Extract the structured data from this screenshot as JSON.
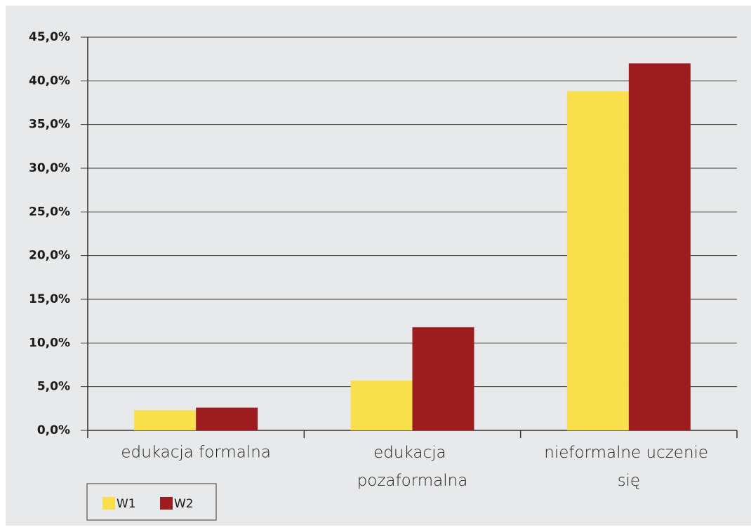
{
  "chart_data": {
    "type": "bar",
    "categories": [
      "edukacja formalna",
      "edukacja pozaformalna",
      "nieformalne uczenie się"
    ],
    "series": [
      {
        "name": "W1",
        "color": "#f9df4b",
        "values": [
          2.3,
          5.7,
          38.8
        ]
      },
      {
        "name": "W2",
        "color": "#9c1c20",
        "values": [
          2.6,
          11.8,
          42.0
        ]
      }
    ],
    "ylim": [
      0,
      45
    ],
    "yticks": [
      {
        "value": 0,
        "label": "0,0%"
      },
      {
        "value": 5,
        "label": "5,0%"
      },
      {
        "value": 10,
        "label": "10,0%"
      },
      {
        "value": 15,
        "label": "15,0%"
      },
      {
        "value": 20,
        "label": "20,0%"
      },
      {
        "value": 25,
        "label": "25,0%"
      },
      {
        "value": 30,
        "label": "30,0%"
      },
      {
        "value": 35,
        "label": "35,0%"
      },
      {
        "value": 40,
        "label": "40,0%"
      },
      {
        "value": 45,
        "label": "45,0%"
      }
    ],
    "grid": true,
    "legend": "bottom-left"
  }
}
